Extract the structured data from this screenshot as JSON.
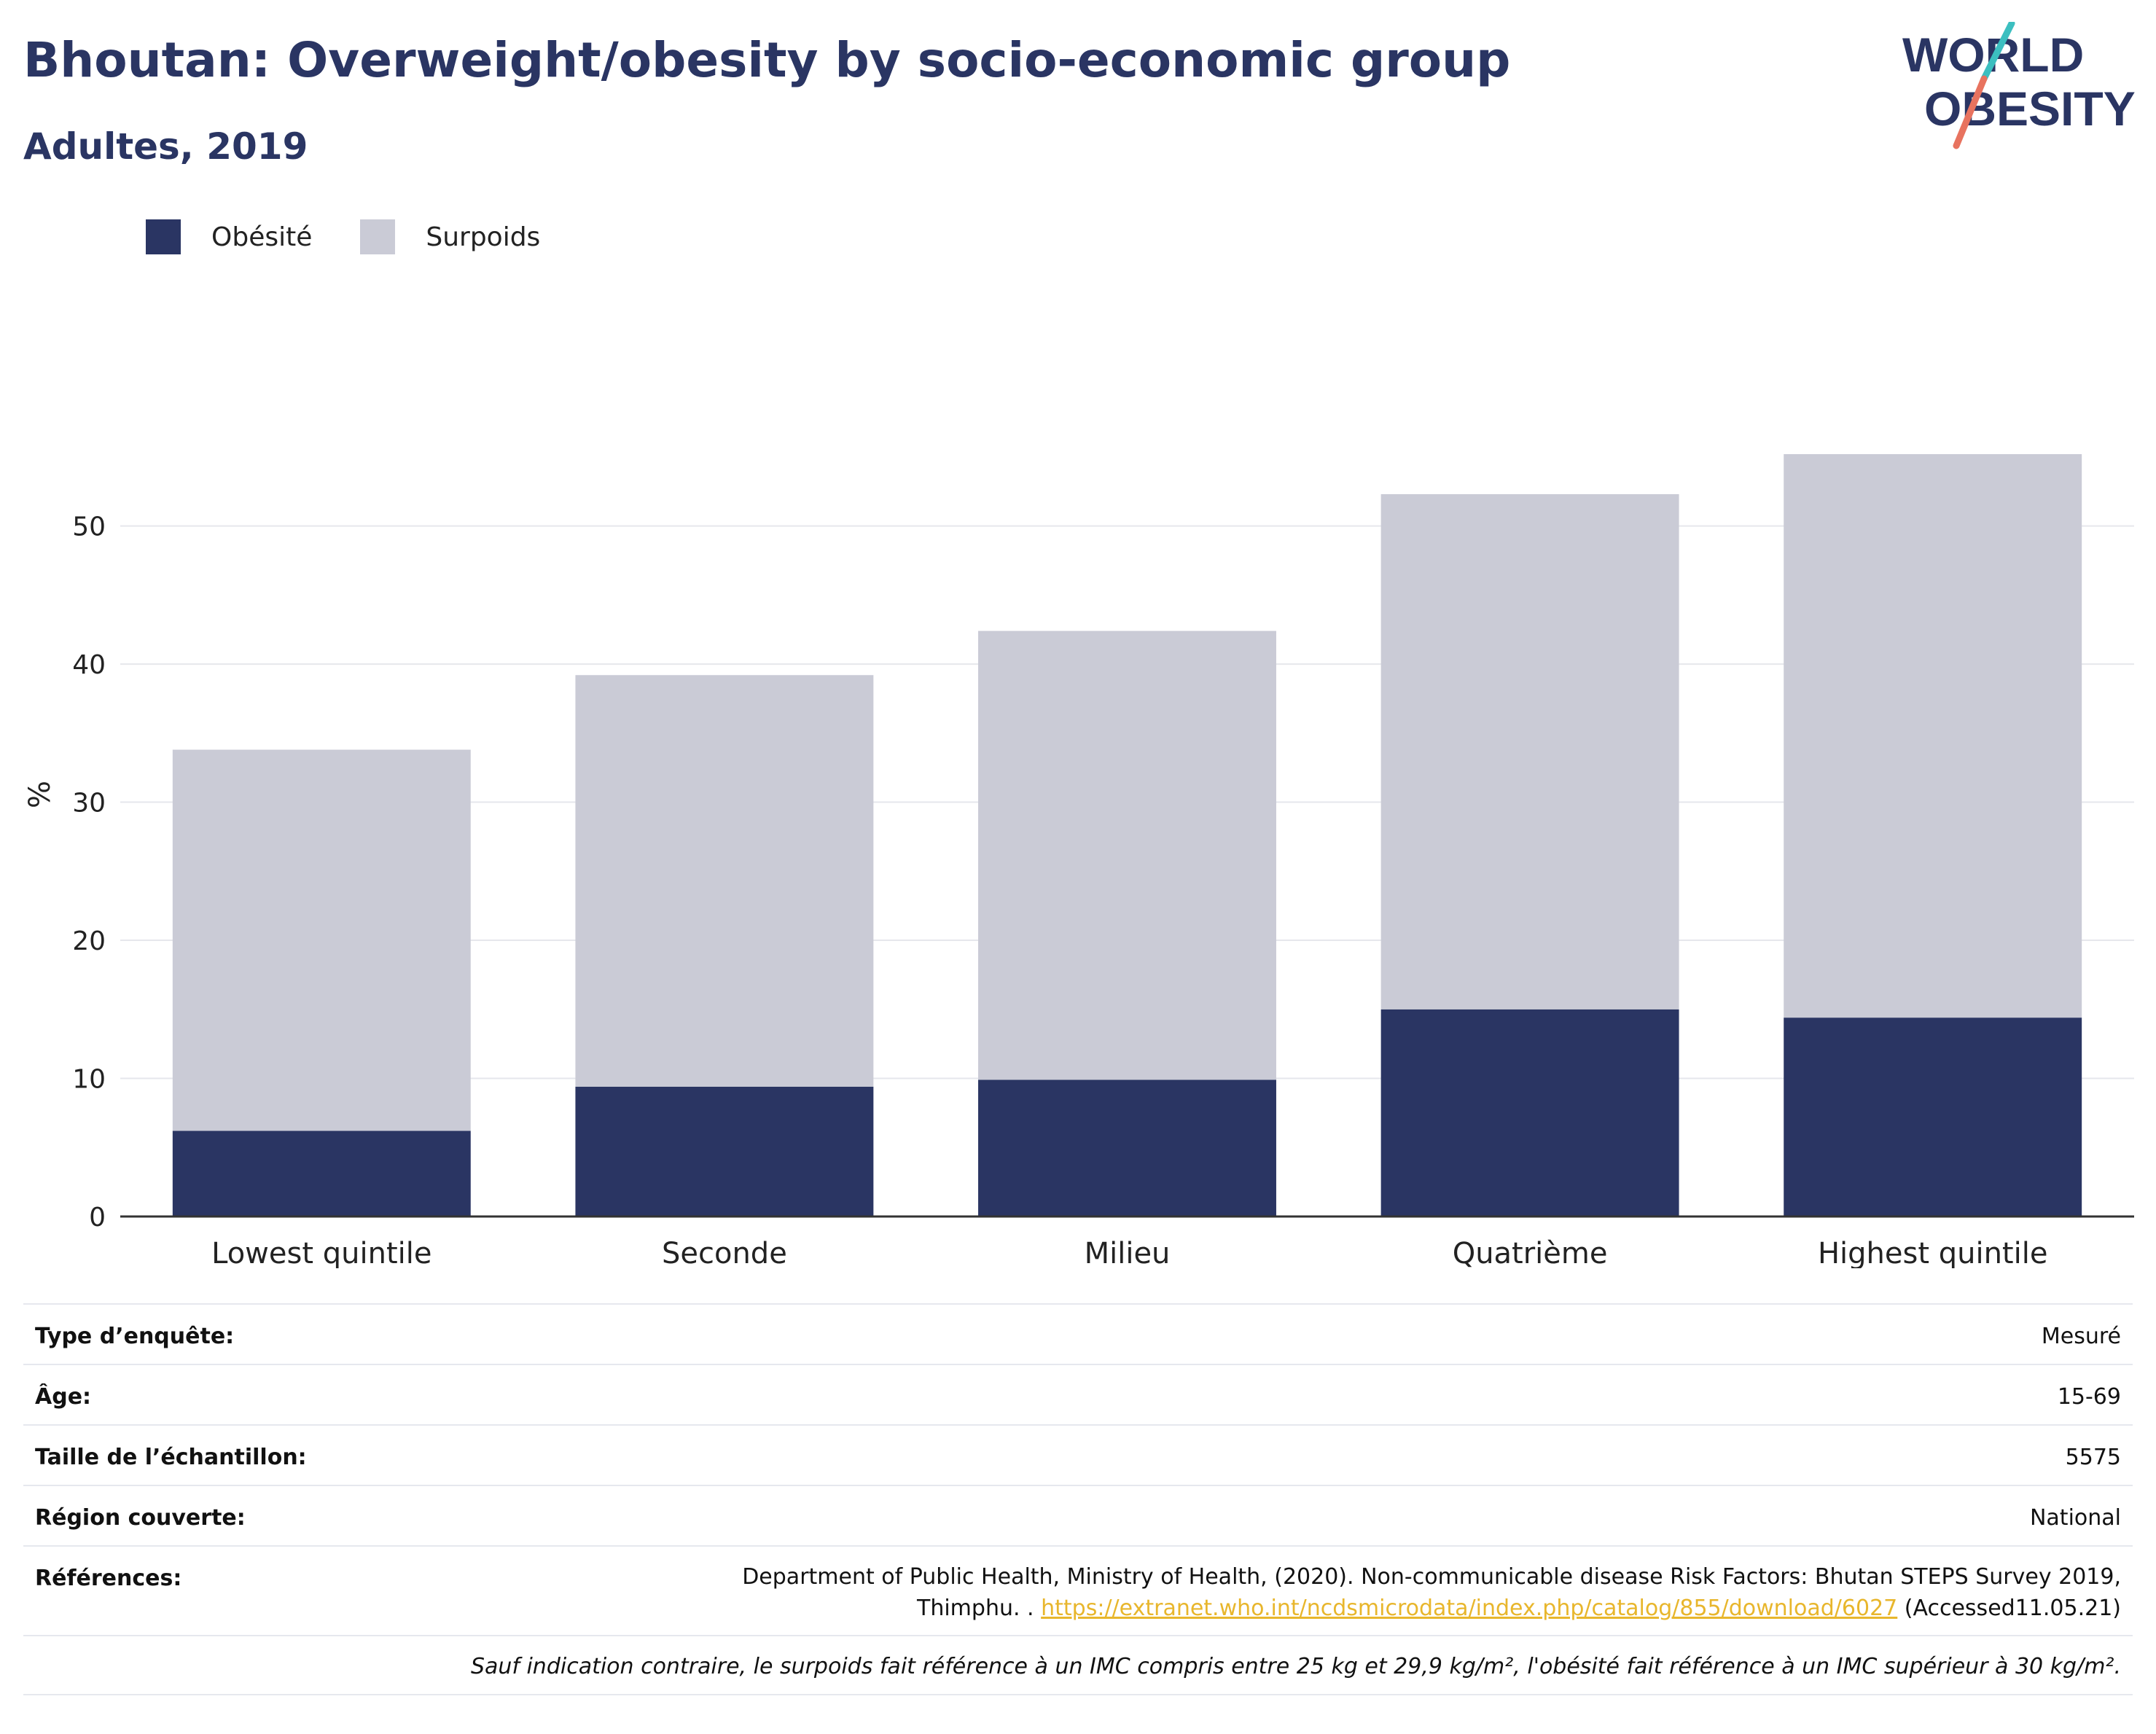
{
  "title": "Bhoutan: Overweight/obesity by socio-economic group",
  "subtitle": "Adultes, 2019",
  "logo": {
    "line1": "WORLD",
    "line2": "OBESITY"
  },
  "colors": {
    "obesite": "#2a3563",
    "surpoids": "#cacbd6",
    "title": "#2a3563",
    "link": "#e8b62c",
    "logo_slash_top": "#3cbfc0",
    "logo_slash_bottom": "#e8735f"
  },
  "legend": [
    {
      "label": "Obésité",
      "color": "#2a3563"
    },
    {
      "label": "Surpoids",
      "color": "#cacbd6"
    }
  ],
  "chart_data": {
    "type": "bar",
    "stacked": true,
    "categories": [
      "Lowest quintile",
      "Seconde",
      "Milieu",
      "Quatrième",
      "Highest quintile"
    ],
    "series": [
      {
        "name": "Obésité",
        "values": [
          6.2,
          9.4,
          9.9,
          15.0,
          14.4
        ]
      },
      {
        "name": "Surpoids",
        "values": [
          27.6,
          29.8,
          32.5,
          37.3,
          40.8
        ]
      }
    ],
    "ylabel": "%",
    "yticks": [
      0,
      10,
      20,
      30,
      40,
      50
    ],
    "ylim": [
      0,
      58
    ],
    "grid": true,
    "legend_position": "top-left"
  },
  "meta": {
    "survey_type": {
      "label": "Type d’enquête:",
      "value": "Mesuré"
    },
    "age": {
      "label": "Âge:",
      "value": "15-69"
    },
    "sample_size": {
      "label": "Taille de l’échantillon:",
      "value": "5575"
    },
    "region": {
      "label": "Région couverte:",
      "value": "National"
    },
    "references": {
      "label": "Références:",
      "line1": "Department of Public Health, Ministry of Health, (2020). Non-communicable disease Risk Factors: Bhutan STEPS Survey 2019,",
      "line2_prefix": "Thimphu. . ",
      "link": "https://extranet.who.int/ncdsmicrodata/index.php/catalog/855/download/6027",
      "suffix": " (Accessed11.05.21)"
    },
    "footnote": "Sauf indication contraire, le surpoids fait référence à un IMC compris entre 25 kg et 29,9 kg/m², l'obésité fait référence à un IMC supérieur à 30 kg/m²."
  }
}
